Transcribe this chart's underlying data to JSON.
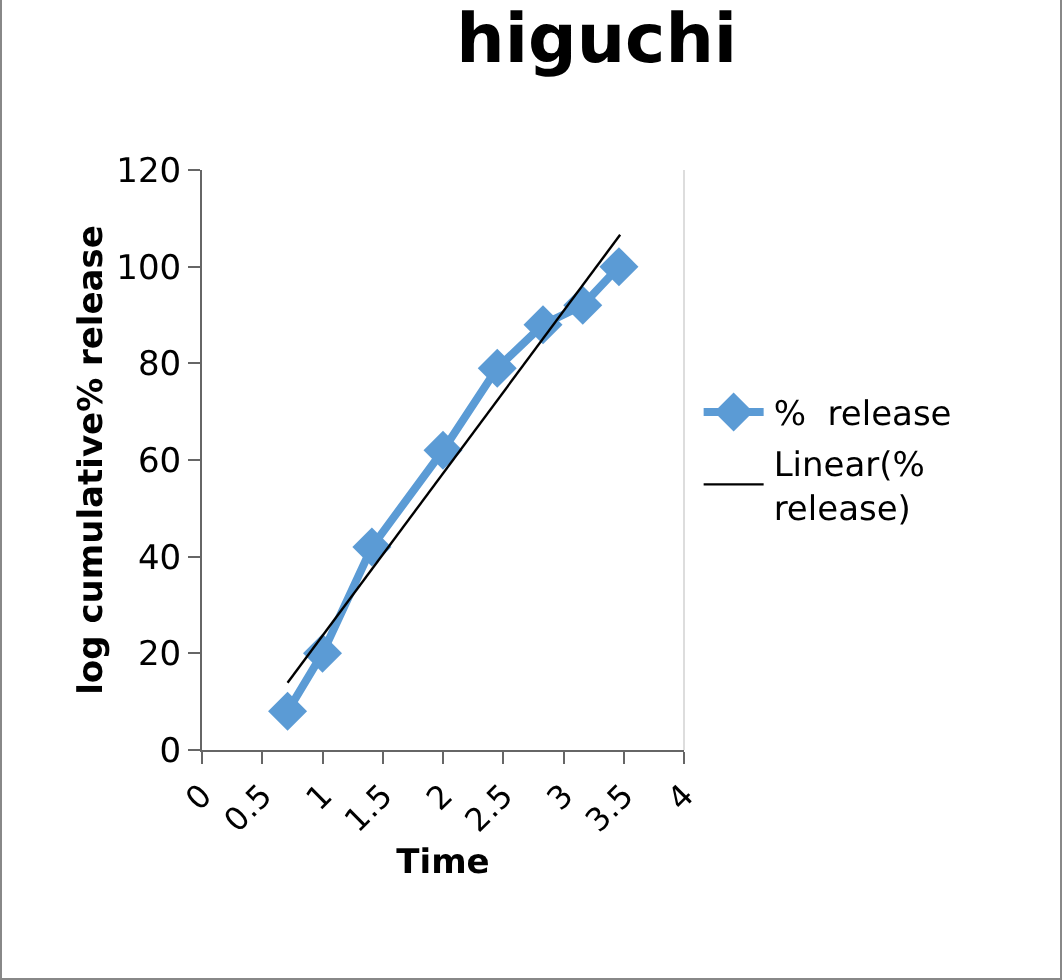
{
  "chart_data": {
    "type": "line",
    "title": "higuchi",
    "xlabel": "Time",
    "ylabel": "log cumulative% release",
    "x": [
      0.71,
      1.0,
      1.41,
      2.0,
      2.45,
      2.83,
      3.16,
      3.46
    ],
    "series": [
      {
        "name": "%  release",
        "color": "#5b9bd5",
        "values": [
          8,
          20,
          42,
          62,
          79,
          88,
          92,
          100
        ],
        "marker": "diamond"
      },
      {
        "name": "Linear(% release)",
        "color": "#000000",
        "x": [
          0.71,
          3.47
        ],
        "values": [
          13.9,
          106.6
        ],
        "marker": "none"
      }
    ],
    "xlim": [
      0,
      4
    ],
    "xticks": [
      0,
      0.5,
      1,
      1.5,
      2,
      2.5,
      3,
      3.5,
      4
    ],
    "ylim": [
      0,
      120
    ],
    "yticks": [
      0,
      20,
      40,
      60,
      80,
      100,
      120
    ],
    "grid": false,
    "legend": "right"
  }
}
